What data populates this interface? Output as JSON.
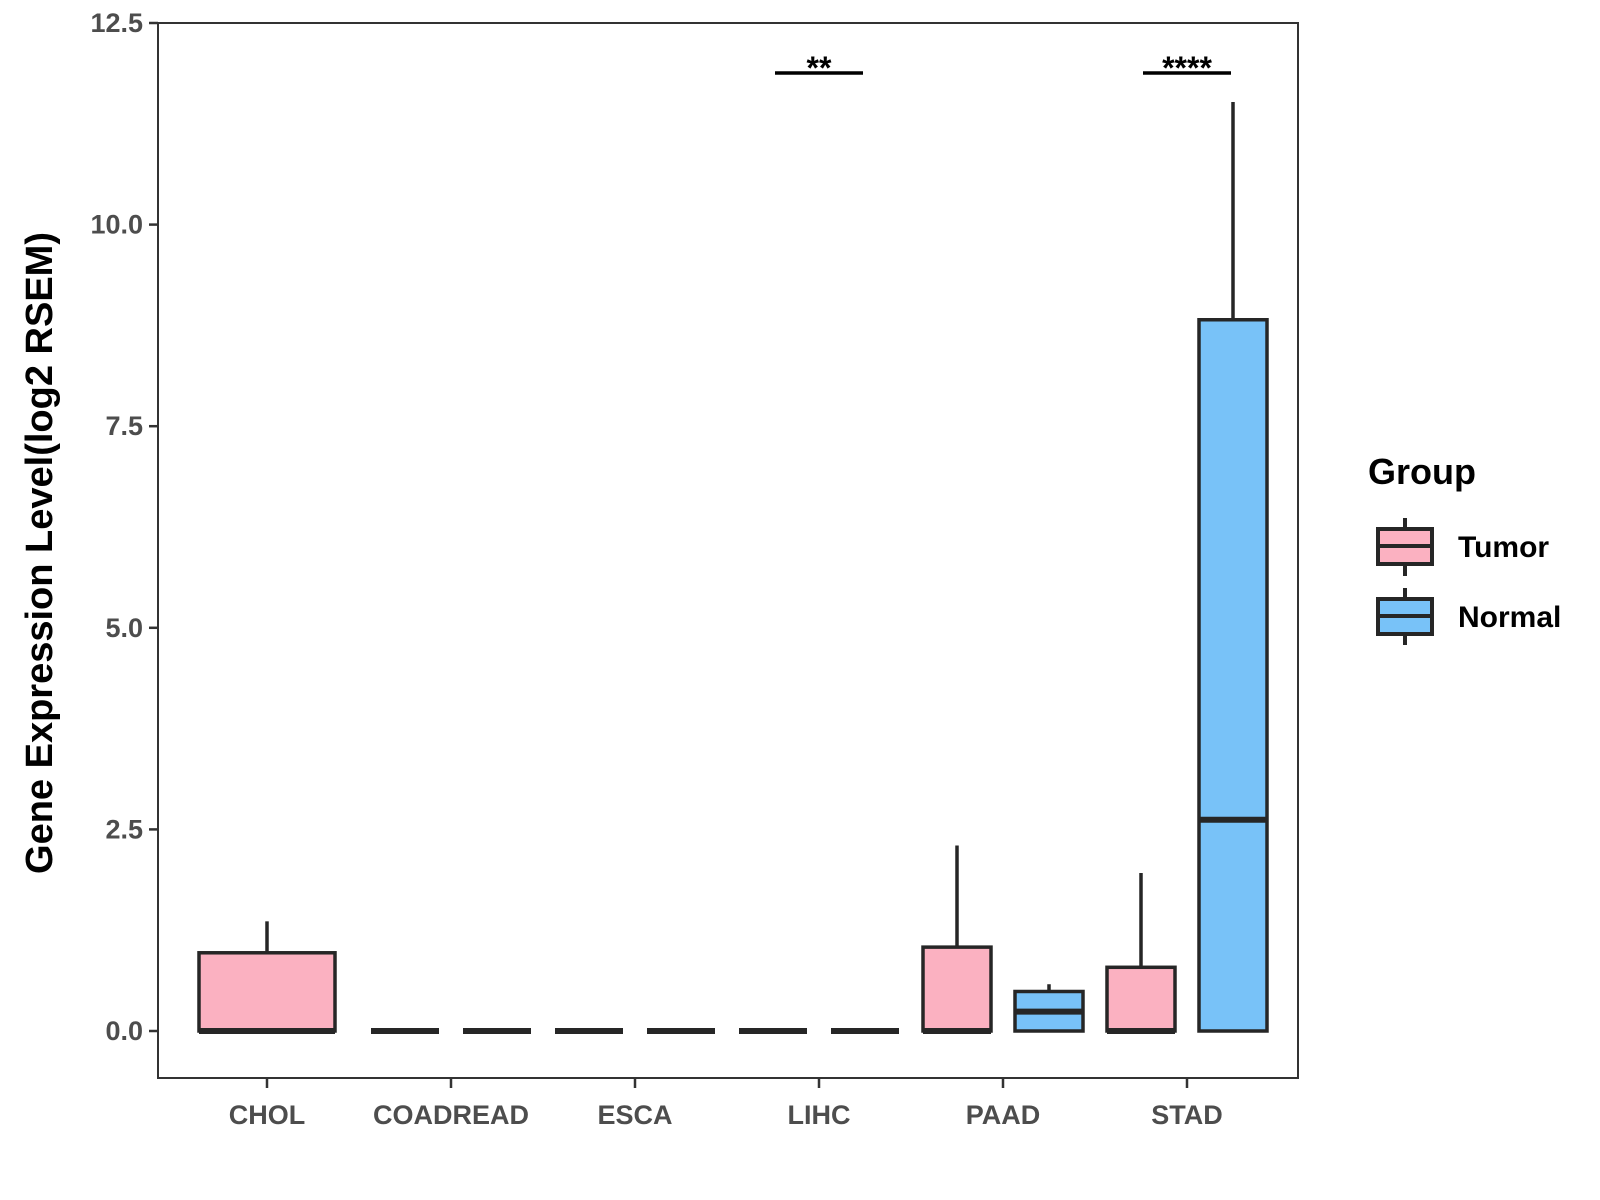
{
  "chart_data": {
    "type": "box",
    "title": "",
    "xlabel": "",
    "ylabel": "Gene Expression Level(log2 RSEM)",
    "ylim": [
      -0.58,
      12.5
    ],
    "yticks": [
      0.0,
      2.5,
      5.0,
      7.5,
      10.0,
      12.5
    ],
    "ytick_labels": [
      "0.0",
      "2.5",
      "5.0",
      "7.5",
      "10.0",
      "12.5"
    ],
    "categories": [
      "CHOL",
      "COADREAD",
      "ESCA",
      "LIHC",
      "PAAD",
      "STAD"
    ],
    "groups": [
      "Tumor",
      "Normal"
    ],
    "colors": {
      "Tumor": "#FBB1C1",
      "Normal": "#78C2F8",
      "outline": "#262626"
    },
    "boxes": [
      {
        "category": "CHOL",
        "group": "Tumor",
        "q1": 0.0,
        "median": 0.0,
        "q3": 0.97,
        "whisker_low": 0.0,
        "whisker_high": 1.36
      },
      {
        "category": "COADREAD",
        "group": "Tumor",
        "q1": 0.0,
        "median": 0.0,
        "q3": 0.0,
        "whisker_low": 0.0,
        "whisker_high": 0.0
      },
      {
        "category": "COADREAD",
        "group": "Normal",
        "q1": 0.0,
        "median": 0.0,
        "q3": 0.0,
        "whisker_low": 0.0,
        "whisker_high": 0.0
      },
      {
        "category": "ESCA",
        "group": "Tumor",
        "q1": 0.0,
        "median": 0.0,
        "q3": 0.0,
        "whisker_low": 0.0,
        "whisker_high": 0.0
      },
      {
        "category": "ESCA",
        "group": "Normal",
        "q1": 0.0,
        "median": 0.0,
        "q3": 0.0,
        "whisker_low": 0.0,
        "whisker_high": 0.0
      },
      {
        "category": "LIHC",
        "group": "Tumor",
        "q1": 0.0,
        "median": 0.0,
        "q3": 0.0,
        "whisker_low": 0.0,
        "whisker_high": 0.0
      },
      {
        "category": "LIHC",
        "group": "Normal",
        "q1": 0.0,
        "median": 0.0,
        "q3": 0.0,
        "whisker_low": 0.0,
        "whisker_high": 0.0
      },
      {
        "category": "PAAD",
        "group": "Tumor",
        "q1": 0.0,
        "median": 0.0,
        "q3": 1.04,
        "whisker_low": 0.0,
        "whisker_high": 2.3
      },
      {
        "category": "PAAD",
        "group": "Normal",
        "q1": 0.0,
        "median": 0.24,
        "q3": 0.49,
        "whisker_low": 0.0,
        "whisker_high": 0.58
      },
      {
        "category": "STAD",
        "group": "Tumor",
        "q1": 0.0,
        "median": 0.0,
        "q3": 0.79,
        "whisker_low": 0.0,
        "whisker_high": 1.96
      },
      {
        "category": "STAD",
        "group": "Normal",
        "q1": 0.0,
        "median": 2.62,
        "q3": 8.82,
        "whisker_low": 0.0,
        "whisker_high": 11.52
      }
    ],
    "annotations": [
      {
        "category": "LIHC",
        "label": "**",
        "y": 11.88
      },
      {
        "category": "STAD",
        "label": "****",
        "y": 11.88
      }
    ],
    "legend": {
      "title": "Group",
      "entries": [
        "Tumor",
        "Normal"
      ],
      "position": "right"
    }
  }
}
